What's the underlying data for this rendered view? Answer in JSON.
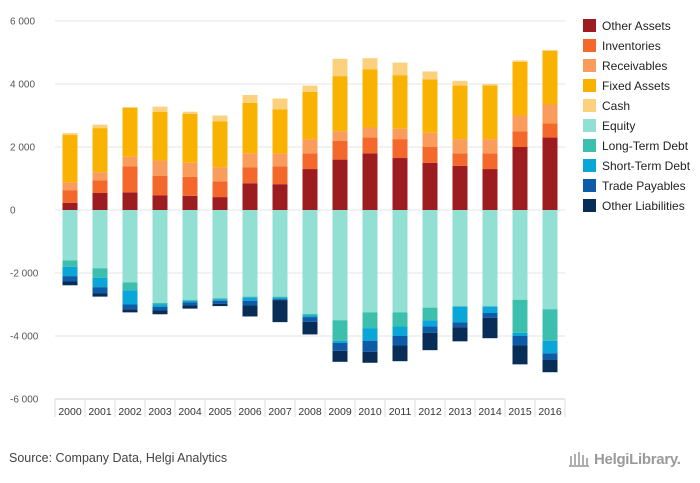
{
  "chart_data": {
    "type": "bar",
    "stacked": true,
    "categories": [
      "2000",
      "2001",
      "2002",
      "2003",
      "2004",
      "2005",
      "2006",
      "2007",
      "2008",
      "2009",
      "2010",
      "2011",
      "2012",
      "2013",
      "2014",
      "2015",
      "2016"
    ],
    "ylim": [
      -6000,
      6000
    ],
    "yticks": [
      6000,
      4000,
      2000,
      0,
      -2000,
      -4000,
      -6000
    ],
    "ytick_labels": [
      "6 000",
      "4 000",
      "2 000",
      "0",
      "-2 000",
      "-4 000",
      "-6 000"
    ],
    "grid": true,
    "legend_position": "right",
    "series": [
      {
        "name": "Other Assets",
        "color": "#9d1c20",
        "values": [
          230,
          540,
          560,
          460,
          450,
          410,
          850,
          820,
          1300,
          1600,
          1800,
          1650,
          1500,
          1400,
          1300,
          2000,
          2300
        ]
      },
      {
        "name": "Inventories",
        "color": "#f4682c",
        "values": [
          400,
          400,
          830,
          630,
          600,
          500,
          500,
          570,
          500,
          600,
          500,
          600,
          500,
          400,
          500,
          500,
          450
        ]
      },
      {
        "name": "Receivables",
        "color": "#f99c5c",
        "values": [
          250,
          260,
          300,
          480,
          450,
          450,
          450,
          400,
          450,
          300,
          320,
          330,
          450,
          450,
          450,
          500,
          600
        ]
      },
      {
        "name": "Fixed Assets",
        "color": "#f9b200",
        "values": [
          1500,
          1400,
          1550,
          1550,
          1550,
          1450,
          1600,
          1400,
          1500,
          1750,
          1850,
          1700,
          1700,
          1700,
          1700,
          1700,
          1700
        ]
      },
      {
        "name": "Cash",
        "color": "#fcd17d",
        "values": [
          60,
          110,
          30,
          160,
          70,
          190,
          250,
          350,
          200,
          550,
          350,
          400,
          250,
          150,
          50,
          50,
          30
        ]
      },
      {
        "name": "Equity",
        "color": "#92dfd4",
        "values": [
          -1600,
          -1850,
          -2300,
          -2950,
          -2850,
          -2800,
          -2750,
          -2750,
          -3300,
          -3500,
          -3250,
          -3250,
          -3100,
          -3050,
          -3050,
          -2850,
          -3150
        ]
      },
      {
        "name": "Long-Term Debt",
        "color": "#3dbfad",
        "values": [
          -200,
          -300,
          -250,
          -50,
          -30,
          -30,
          -30,
          -30,
          -50,
          -650,
          -500,
          -450,
          -400,
          -20,
          -20,
          -1050,
          -1000
        ]
      },
      {
        "name": "Short-Term Debt",
        "color": "#0aa6d8",
        "values": [
          -300,
          -300,
          -450,
          -70,
          -50,
          -50,
          -100,
          -50,
          -50,
          -70,
          -400,
          -300,
          -200,
          -500,
          -200,
          -100,
          -400
        ]
      },
      {
        "name": "Trade Payables",
        "color": "#0e5ca7",
        "values": [
          -170,
          -200,
          -150,
          -120,
          -100,
          -100,
          -150,
          -30,
          -150,
          -250,
          -350,
          -300,
          -200,
          -150,
          -150,
          -300,
          -200
        ]
      },
      {
        "name": "Other Liabilities",
        "color": "#082d57",
        "values": [
          -120,
          -100,
          -100,
          -120,
          -100,
          -70,
          -350,
          -700,
          -400,
          -350,
          -350,
          -500,
          -550,
          -450,
          -650,
          -600,
          -400
        ]
      }
    ]
  },
  "source_text": "Source: Company Data, Helgi Analytics",
  "brand_text": "HelgiLibrary."
}
